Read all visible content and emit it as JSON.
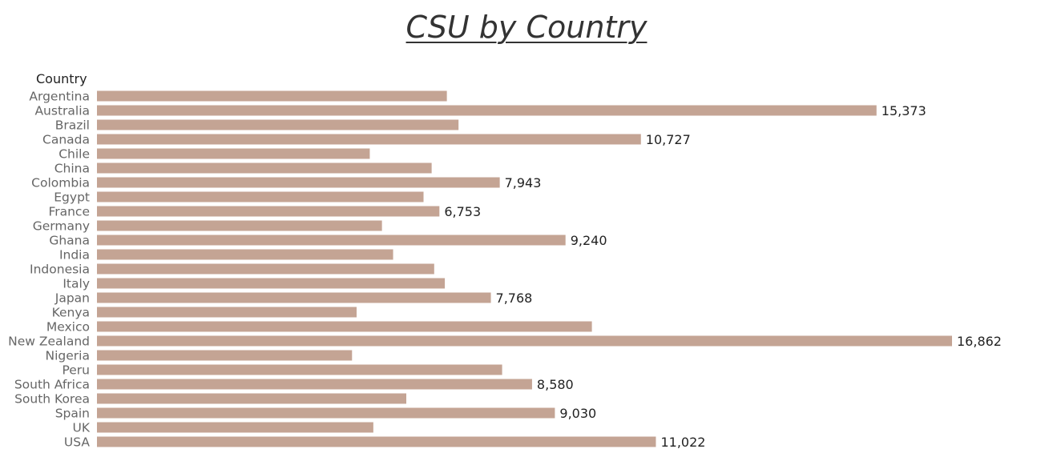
{
  "chart_data": {
    "type": "bar",
    "orientation": "horizontal",
    "title": "CSU by Country",
    "ylabel": "Country",
    "xlabel": "",
    "bar_color": "#c4a494",
    "xlim": [
      0,
      17000
    ],
    "grid": false,
    "categories": [
      "Argentina",
      "Australia",
      "Brazil",
      "Canada",
      "Chile",
      "China",
      "Colombia",
      "Egypt",
      "France",
      "Germany",
      "Ghana",
      "India",
      "Indonesia",
      "Italy",
      "Japan",
      "Kenya",
      "Mexico",
      "New Zealand",
      "Nigeria",
      "Peru",
      "South Africa",
      "South Korea",
      "Spain",
      "UK",
      "USA"
    ],
    "values": [
      6900,
      15373,
      7130,
      10727,
      5380,
      6600,
      7943,
      6440,
      6753,
      5620,
      9240,
      5840,
      6650,
      6860,
      7768,
      5120,
      9760,
      16862,
      5030,
      7990,
      8580,
      6100,
      9030,
      5450,
      11022
    ],
    "data_labels": [
      "",
      "15,373",
      "",
      "10,727",
      "",
      "",
      "7,943",
      "",
      "6,753",
      "",
      "9,240",
      "",
      "",
      "",
      "7,768",
      "",
      "",
      "16,862",
      "",
      "",
      "8,580",
      "",
      "9,030",
      "",
      "11,022"
    ]
  }
}
